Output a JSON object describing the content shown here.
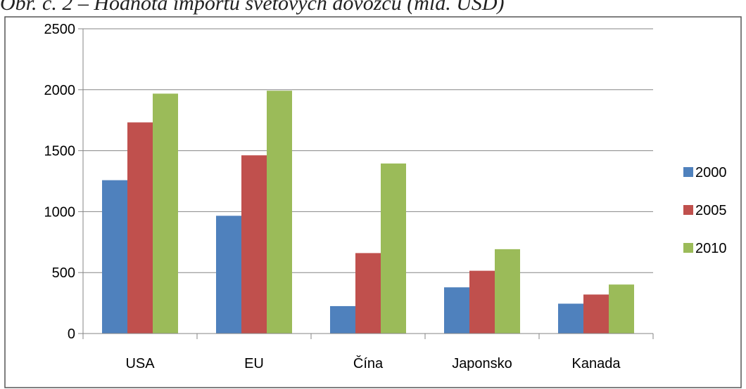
{
  "caption": "Obr. č. 2 – Hodnota importu světových dovozců (mld. USD)",
  "chart_data": {
    "type": "bar",
    "title": "",
    "xlabel": "",
    "ylabel": "",
    "categories": [
      "USA",
      "EU",
      "Čína",
      "Japonsko",
      "Kanada"
    ],
    "series": [
      {
        "name": "2000",
        "color": "#4F81BD",
        "values": [
          1258,
          966,
          225,
          379,
          245
        ]
      },
      {
        "name": "2005",
        "color": "#C0504D",
        "values": [
          1732,
          1462,
          660,
          515,
          320
        ]
      },
      {
        "name": "2010",
        "color": "#9BBB59",
        "values": [
          1968,
          1992,
          1395,
          692,
          402
        ]
      }
    ],
    "ylim": [
      0,
      2500
    ],
    "yticks": [
      "0",
      "500",
      "1000",
      "1500",
      "2000",
      "2500"
    ],
    "grid": true,
    "legend": "right"
  }
}
